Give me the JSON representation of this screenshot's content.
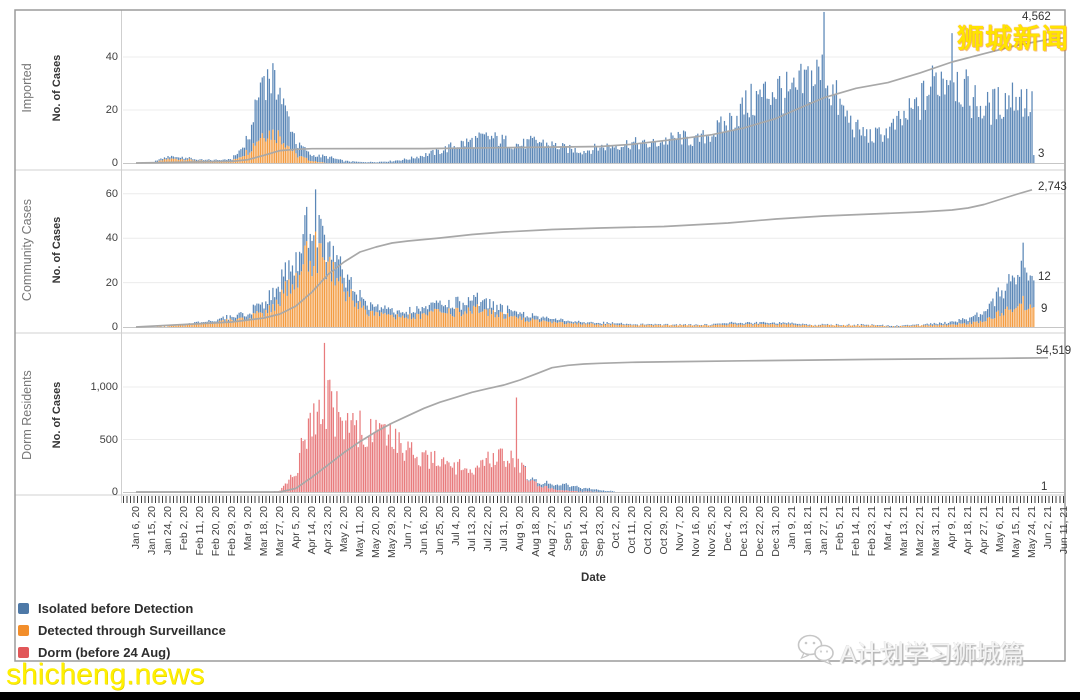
{
  "watermarks": {
    "top_right": "狮城新闻",
    "bottom_right": "A计划学习狮城篇",
    "bottom_left": "shicheng.news"
  },
  "legend": {
    "items": [
      {
        "label": "Isolated before Detection",
        "color": "#4e79a7"
      },
      {
        "label": "Detected through Surveillance",
        "color": "#f28e2b"
      },
      {
        "label": "Dorm (before 24 Aug)",
        "color": "#e15759"
      }
    ]
  },
  "date_axis": {
    "title": "Date",
    "start": "Jan 6, 20",
    "days_per_tick": 9,
    "labels": [
      "Jan 6, 20",
      "Jan 15, 20",
      "Jan 24, 20",
      "Feb 2, 20",
      "Feb 11, 20",
      "Feb 20, 20",
      "Feb 29, 20",
      "Mar 9, 20",
      "Mar 18, 20",
      "Mar 27, 20",
      "Apr 5, 20",
      "Apr 14, 20",
      "Apr 23, 20",
      "May 2, 20",
      "May 11, 20",
      "May 20, 20",
      "May 29, 20",
      "Jun 7, 20",
      "Jun 16, 20",
      "Jun 25, 20",
      "Jul 4, 20",
      "Jul 13, 20",
      "Jul 22, 20",
      "Jul 31, 20",
      "Aug 9, 20",
      "Aug 18, 20",
      "Aug 27, 20",
      "Sep 5, 20",
      "Sep 14, 20",
      "Sep 23, 20",
      "Oct 2, 20",
      "Oct 11, 20",
      "Oct 20, 20",
      "Oct 29, 20",
      "Nov 7, 20",
      "Nov 16, 20",
      "Nov 25, 20",
      "Dec 4, 20",
      "Dec 13, 20",
      "Dec 22, 20",
      "Dec 31, 20",
      "Jan 9, 21",
      "Jan 18, 21",
      "Jan 27, 21",
      "Feb 5, 21",
      "Feb 14, 21",
      "Feb 23, 21",
      "Mar 4, 21",
      "Mar 13, 21",
      "Mar 22, 21",
      "Mar 31, 21",
      "Apr 9, 21",
      "Apr 18, 21",
      "Apr 27, 21",
      "May 6, 21",
      "May 15, 21",
      "May 24, 21",
      "Jun 2, 21",
      "Jun 11, 21"
    ]
  },
  "chart_data": [
    {
      "type": "bar",
      "row_label": "Imported",
      "y_axis_label": "No. of Cases",
      "y_ticks": [
        0,
        20,
        40
      ],
      "y_max": 58,
      "series": [
        {
          "name": "Detected through Surveillance",
          "color": "#f39c42",
          "envelope": [
            0,
            0,
            2,
            2,
            1,
            1,
            1,
            6,
            16,
            14,
            4,
            1,
            0,
            0,
            0,
            0,
            0,
            0,
            0,
            0,
            0,
            0,
            0,
            0,
            0,
            0,
            0,
            0,
            0,
            0,
            0,
            0,
            0,
            0,
            0,
            0,
            0,
            0,
            0,
            0,
            0,
            0,
            0,
            0,
            0,
            0,
            0,
            0,
            0,
            0,
            0,
            0,
            0,
            0,
            0,
            0,
            0,
            0,
            0
          ]
        },
        {
          "name": "Isolated before Detection",
          "color": "#5b87b7",
          "envelope": [
            0,
            0.5,
            1,
            1,
            0.5,
            0.5,
            1,
            6,
            32,
            24,
            6,
            3,
            3,
            1,
            0.5,
            0.5,
            1,
            2,
            4,
            6,
            9,
            11,
            13,
            11,
            9,
            11,
            9,
            7,
            6,
            8,
            9,
            10,
            9,
            11,
            13,
            11,
            15,
            20,
            28,
            33,
            38,
            33,
            42,
            45,
            28,
            17,
            13,
            16,
            22,
            30,
            42,
            46,
            34,
            27,
            30,
            35,
            28,
            15,
            6
          ]
        }
      ],
      "spikes": [
        {
          "day": 387,
          "series": 1,
          "value": 57
        },
        {
          "day": 459,
          "series": 1,
          "value": 49
        },
        {
          "day": 505,
          "series": 1,
          "value": 3
        }
      ],
      "cumulative_line": {
        "color": "#a8a8a8",
        "axis_max": 5500,
        "total": 4562,
        "points": [
          [
            0,
            0
          ],
          [
            6,
            60
          ],
          [
            7,
            120
          ],
          [
            8,
            280
          ],
          [
            9,
            450
          ],
          [
            10,
            500
          ],
          [
            11,
            520
          ],
          [
            18,
            525
          ],
          [
            29,
            600
          ],
          [
            31,
            680
          ],
          [
            34,
            880
          ],
          [
            36,
            1030
          ],
          [
            38,
            1280
          ],
          [
            40,
            1620
          ],
          [
            41,
            1880
          ],
          [
            43,
            2380
          ],
          [
            45,
            2720
          ],
          [
            47,
            2930
          ],
          [
            49,
            3280
          ],
          [
            51,
            3680
          ],
          [
            53,
            3980
          ],
          [
            55,
            4280
          ],
          [
            57,
            4500
          ],
          [
            58,
            4562
          ]
        ]
      },
      "value_labels": [
        {
          "text": "4,562",
          "x": 1022,
          "y": 11
        },
        {
          "text": "3",
          "x": 1038,
          "y": 148
        }
      ]
    },
    {
      "type": "bar",
      "row_label": "Community Cases",
      "y_axis_label": "No. of Cases",
      "y_ticks": [
        0,
        20,
        40,
        60
      ],
      "y_max": 66,
      "series": [
        {
          "name": "Detected through Surveillance",
          "color": "#f39c42",
          "envelope": [
            0,
            0,
            0.5,
            1,
            2,
            3,
            4,
            5,
            9,
            16,
            30,
            44,
            34,
            22,
            12,
            7,
            6,
            6,
            7,
            9,
            9,
            11,
            9,
            7,
            5,
            4,
            3,
            2,
            2,
            1.5,
            1.5,
            1.5,
            1,
            1,
            1,
            1,
            1,
            1.5,
            1.5,
            1.5,
            1.5,
            1.5,
            1,
            1,
            1,
            1,
            1,
            0.5,
            0.5,
            1,
            1,
            1.5,
            2,
            4,
            8,
            12,
            12,
            9,
            9
          ]
        },
        {
          "name": "Isolated before Detection",
          "color": "#5b87b7",
          "envelope": [
            0,
            0,
            0,
            0.5,
            1,
            1.5,
            2,
            3,
            6,
            9,
            13,
            18,
            14,
            9,
            6,
            4,
            3,
            3,
            4,
            5,
            5,
            6,
            5,
            4,
            3,
            2.5,
            2,
            1.5,
            1,
            1,
            1,
            0.5,
            0.5,
            0.5,
            0.5,
            0.5,
            0.5,
            1,
            1,
            1,
            1,
            1,
            0.5,
            0.5,
            0.5,
            0.5,
            0.5,
            0.5,
            0.5,
            0.5,
            1,
            1.5,
            3,
            6,
            12,
            20,
            22,
            14,
            12
          ]
        }
      ],
      "spikes": [
        {
          "day": 101,
          "series": 0,
          "value": 43
        },
        {
          "day": 101,
          "series": 1,
          "value": 19
        },
        {
          "day": 499,
          "series": 0,
          "value": 14
        },
        {
          "day": 499,
          "series": 1,
          "value": 24
        },
        {
          "day": 505,
          "series": 0,
          "value": 9
        },
        {
          "day": 505,
          "series": 1,
          "value": 12
        }
      ],
      "cumulative_line": {
        "color": "#a8a8a8",
        "axis_max": 3100,
        "total": 2743,
        "points": [
          [
            0,
            0
          ],
          [
            6,
            100
          ],
          [
            8,
            180
          ],
          [
            9,
            260
          ],
          [
            10,
            420
          ],
          [
            11,
            700
          ],
          [
            12,
            1050
          ],
          [
            13,
            1300
          ],
          [
            14,
            1500
          ],
          [
            15,
            1600
          ],
          [
            16,
            1680
          ],
          [
            17,
            1720
          ],
          [
            19,
            1780
          ],
          [
            21,
            1850
          ],
          [
            23,
            1900
          ],
          [
            26,
            1950
          ],
          [
            29,
            1980
          ],
          [
            33,
            2010
          ],
          [
            37,
            2080
          ],
          [
            40,
            2160
          ],
          [
            43,
            2220
          ],
          [
            46,
            2260
          ],
          [
            49,
            2300
          ],
          [
            51,
            2340
          ],
          [
            52,
            2380
          ],
          [
            53,
            2450
          ],
          [
            54,
            2550
          ],
          [
            55,
            2650
          ],
          [
            56,
            2743
          ]
        ]
      },
      "value_labels": [
        {
          "text": "2,743",
          "x": 1038,
          "y": 181
        },
        {
          "text": "12",
          "x": 1038,
          "y": 271
        },
        {
          "text": "9",
          "x": 1041,
          "y": 303
        }
      ]
    },
    {
      "type": "bar",
      "row_label": "Dorm Residents",
      "y_axis_label": "No. of Cases",
      "y_ticks": [
        0,
        500,
        1000
      ],
      "y_max": 1430,
      "series": [
        {
          "name": "Dorm (before 24 Aug)",
          "color": "#e87b7d",
          "envelope": [
            0,
            0,
            0,
            0,
            0,
            0,
            0,
            0,
            2,
            15,
            250,
            1050,
            1200,
            850,
            800,
            750,
            650,
            520,
            420,
            380,
            330,
            280,
            420,
            480,
            320,
            100,
            40,
            15,
            8,
            4,
            3,
            2,
            2,
            2,
            2,
            1,
            1,
            1,
            1,
            1,
            1,
            1,
            0.5,
            0.5,
            0.5,
            0.5,
            0.5,
            0.5,
            0.5,
            0.5,
            0.5,
            0.5,
            0.5,
            0.5,
            0.5,
            0.5,
            0.5,
            0.5,
            1
          ]
        },
        {
          "name": "Isolated before Detection",
          "color": "#5b87b7",
          "envelope": [
            0,
            0,
            0,
            0,
            0,
            0,
            0,
            0,
            0,
            0,
            0,
            0,
            0,
            0,
            0,
            0,
            0,
            0,
            0,
            0,
            0,
            0,
            0,
            0,
            0,
            30,
            60,
            70,
            50,
            20,
            5,
            0,
            0,
            0,
            0,
            0,
            0,
            0,
            0,
            0,
            0,
            0,
            0,
            0,
            0,
            0,
            0,
            0,
            0,
            0,
            0,
            0,
            0,
            0,
            0,
            0,
            0,
            0,
            0
          ]
        }
      ],
      "spikes": [
        {
          "day": 106,
          "series": 0,
          "value": 1420
        },
        {
          "day": 214,
          "series": 0,
          "value": 900
        },
        {
          "day": 505,
          "series": 0,
          "value": 1
        }
      ],
      "cumulative_line": {
        "color": "#a8a8a8",
        "axis_max": 63800,
        "total": 54519,
        "points": [
          [
            0,
            0
          ],
          [
            9,
            0
          ],
          [
            10,
            1500
          ],
          [
            11,
            6000
          ],
          [
            12,
            11000
          ],
          [
            13,
            16000
          ],
          [
            14,
            20500
          ],
          [
            15,
            24500
          ],
          [
            16,
            28000
          ],
          [
            17,
            31000
          ],
          [
            18,
            34000
          ],
          [
            19,
            36500
          ],
          [
            20,
            38500
          ],
          [
            21,
            40500
          ],
          [
            22,
            42000
          ],
          [
            23,
            43500
          ],
          [
            24,
            45500
          ],
          [
            25,
            48000
          ],
          [
            26,
            50500
          ],
          [
            27,
            51500
          ],
          [
            28,
            52000
          ],
          [
            29,
            52300
          ],
          [
            31,
            52700
          ],
          [
            34,
            53000
          ],
          [
            38,
            53300
          ],
          [
            42,
            53600
          ],
          [
            46,
            53900
          ],
          [
            50,
            54100
          ],
          [
            54,
            54350
          ],
          [
            57,
            54519
          ]
        ]
      },
      "value_labels": [
        {
          "text": "54,519",
          "x": 1036,
          "y": 345
        },
        {
          "text": "1",
          "x": 1041,
          "y": 481
        }
      ]
    }
  ]
}
